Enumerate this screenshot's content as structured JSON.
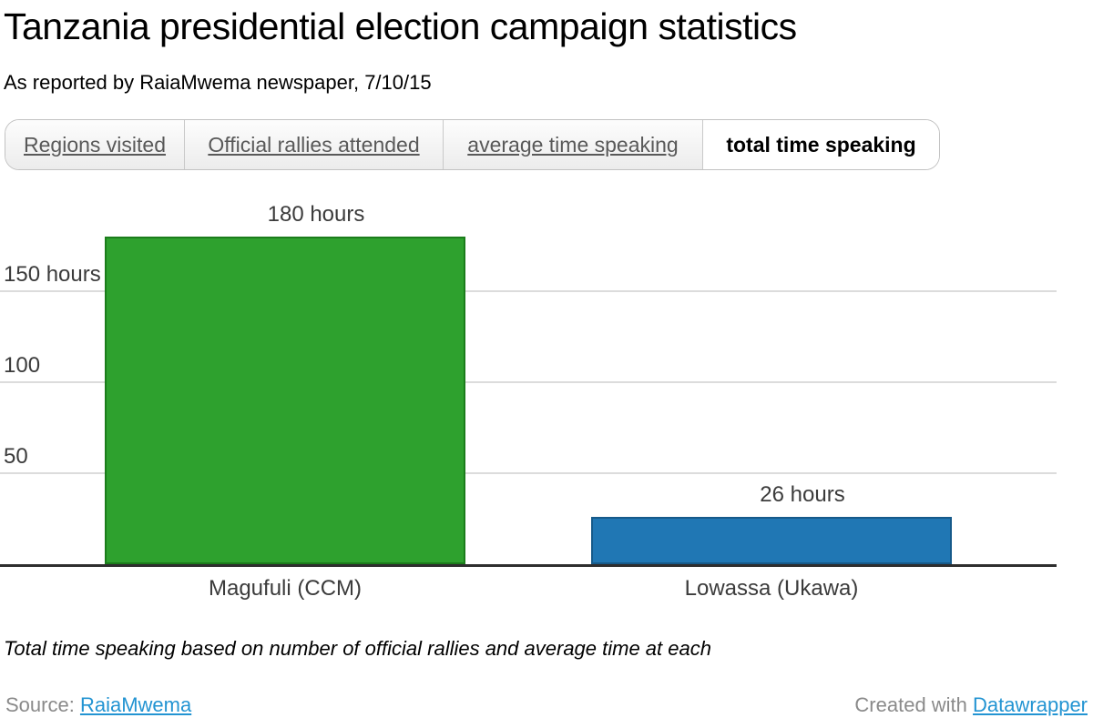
{
  "header": {
    "title": "Tanzania presidential election campaign statistics",
    "subtitle": "As reported by RaiaMwema newspaper, 7/10/15"
  },
  "tabs": {
    "items": [
      {
        "label": "Regions visited",
        "active": false
      },
      {
        "label": "Official rallies attended",
        "active": false
      },
      {
        "label": "average time speaking",
        "active": false
      },
      {
        "label": "total time speaking",
        "active": true
      }
    ]
  },
  "chart_data": {
    "type": "bar",
    "title": "Tanzania presidential election campaign statistics",
    "categories": [
      "Magufuli (CCM)",
      "Lowassa (Ukawa)"
    ],
    "values": [
      180,
      26
    ],
    "value_labels": [
      "180 hours",
      "26 hours"
    ],
    "unit": "hours",
    "bar_colors": [
      {
        "fill": "#2ea12e",
        "stroke": "#1b7d1b"
      },
      {
        "fill": "#2077b4",
        "stroke": "#165a8a"
      }
    ],
    "yticks": [
      {
        "value": 50,
        "label": "50"
      },
      {
        "value": 100,
        "label": "100"
      },
      {
        "value": 150,
        "label": "150 hours"
      }
    ],
    "ylim": [
      0,
      212.5
    ],
    "grid": true,
    "xlabel": "",
    "ylabel": "",
    "legend": "none"
  },
  "footnote": "Total time speaking based on number of official rallies and average time at each",
  "footer": {
    "source_label": "Source:",
    "source_link": "RaiaMwema",
    "credit_label": "Created with",
    "credit_link": "Datawrapper"
  },
  "colors": {
    "grid": "#dcdcdc",
    "axis_line": "#2e2e2e",
    "axis_text": "#3b3b3b",
    "link": "#2394d2",
    "footer_text": "#8a8a8a"
  }
}
